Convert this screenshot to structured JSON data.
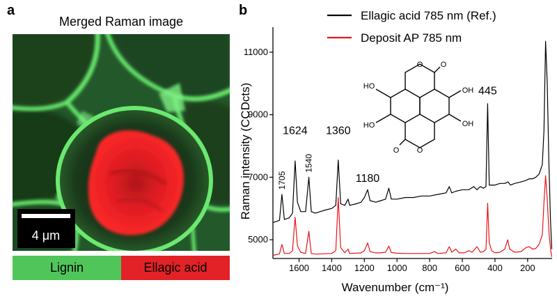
{
  "panel_a": {
    "letter": "a",
    "title": "Merged Raman image",
    "scale_bar_label": "4 μm",
    "legend": [
      {
        "label": "Lignin",
        "color": "#4fc55a"
      },
      {
        "label": "Ellagic acid",
        "color": "#e22226"
      }
    ]
  },
  "panel_b": {
    "letter": "b",
    "molecule_labels": [
      "HO",
      "HO",
      "OH",
      "OH",
      "O",
      "O",
      "O",
      "O"
    ]
  },
  "chart_data": {
    "type": "line",
    "xlabel": "Wavenumber (cm⁻¹)",
    "ylabel": "Raman intensity (CCDcts)",
    "xlim": [
      1760,
      50
    ],
    "ylim": [
      4400,
      11800
    ],
    "xticks": [
      1600,
      1400,
      1200,
      1000,
      800,
      600,
      400,
      200
    ],
    "yticks": [
      5000,
      7000,
      9000,
      11000
    ],
    "legend_position": "top-center",
    "series": [
      {
        "name": "Ellagic acid 785 nm (Ref.)",
        "color": "#000000",
        "points": [
          [
            1760,
            5550
          ],
          [
            1720,
            5620
          ],
          [
            1705,
            6450
          ],
          [
            1690,
            5650
          ],
          [
            1660,
            5700
          ],
          [
            1640,
            5850
          ],
          [
            1624,
            7520
          ],
          [
            1610,
            6200
          ],
          [
            1590,
            5900
          ],
          [
            1560,
            5900
          ],
          [
            1540,
            7000
          ],
          [
            1525,
            5900
          ],
          [
            1500,
            5850
          ],
          [
            1470,
            5900
          ],
          [
            1440,
            5950
          ],
          [
            1400,
            6000
          ],
          [
            1375,
            6100
          ],
          [
            1360,
            7550
          ],
          [
            1345,
            6150
          ],
          [
            1320,
            6100
          ],
          [
            1300,
            6300
          ],
          [
            1290,
            6100
          ],
          [
            1250,
            6150
          ],
          [
            1220,
            6200
          ],
          [
            1200,
            6350
          ],
          [
            1180,
            6600
          ],
          [
            1165,
            6250
          ],
          [
            1130,
            6200
          ],
          [
            1100,
            6250
          ],
          [
            1070,
            6300
          ],
          [
            1050,
            6650
          ],
          [
            1035,
            6300
          ],
          [
            1000,
            6300
          ],
          [
            950,
            6350
          ],
          [
            900,
            6350
          ],
          [
            850,
            6400
          ],
          [
            800,
            6400
          ],
          [
            750,
            6450
          ],
          [
            700,
            6500
          ],
          [
            680,
            6700
          ],
          [
            665,
            6500
          ],
          [
            640,
            6550
          ],
          [
            600,
            6600
          ],
          [
            560,
            6600
          ],
          [
            530,
            6700
          ],
          [
            510,
            6600
          ],
          [
            490,
            6700
          ],
          [
            470,
            6650
          ],
          [
            455,
            6700
          ],
          [
            445,
            9350
          ],
          [
            435,
            6750
          ],
          [
            400,
            6750
          ],
          [
            370,
            6800
          ],
          [
            340,
            6800
          ],
          [
            320,
            6850
          ],
          [
            305,
            6750
          ],
          [
            280,
            6800
          ],
          [
            240,
            6850
          ],
          [
            210,
            6900
          ],
          [
            190,
            6950
          ],
          [
            170,
            6950
          ],
          [
            150,
            7000
          ],
          [
            130,
            7100
          ],
          [
            110,
            7400
          ],
          [
            100,
            8500
          ],
          [
            90,
            11350
          ],
          [
            80,
            10000
          ],
          [
            70,
            7500
          ],
          [
            60,
            5600
          ],
          [
            52,
            4700
          ]
        ]
      },
      {
        "name": "Deposit AP 785 nm",
        "color": "#e8141b",
        "points": [
          [
            1760,
            4500
          ],
          [
            1720,
            4550
          ],
          [
            1705,
            4850
          ],
          [
            1690,
            4560
          ],
          [
            1660,
            4560
          ],
          [
            1640,
            4650
          ],
          [
            1624,
            5720
          ],
          [
            1610,
            4800
          ],
          [
            1590,
            4600
          ],
          [
            1560,
            4560
          ],
          [
            1540,
            5270
          ],
          [
            1525,
            4560
          ],
          [
            1500,
            4540
          ],
          [
            1450,
            4550
          ],
          [
            1400,
            4560
          ],
          [
            1375,
            4650
          ],
          [
            1360,
            6350
          ],
          [
            1345,
            4750
          ],
          [
            1320,
            4580
          ],
          [
            1300,
            4700
          ],
          [
            1290,
            4560
          ],
          [
            1250,
            4570
          ],
          [
            1220,
            4580
          ],
          [
            1200,
            4650
          ],
          [
            1180,
            4900
          ],
          [
            1165,
            4620
          ],
          [
            1130,
            4580
          ],
          [
            1100,
            4580
          ],
          [
            1070,
            4600
          ],
          [
            1050,
            4800
          ],
          [
            1035,
            4590
          ],
          [
            1000,
            4570
          ],
          [
            950,
            4560
          ],
          [
            900,
            4560
          ],
          [
            850,
            4560
          ],
          [
            800,
            4560
          ],
          [
            770,
            4620
          ],
          [
            750,
            4560
          ],
          [
            700,
            4580
          ],
          [
            680,
            4780
          ],
          [
            665,
            4600
          ],
          [
            640,
            4700
          ],
          [
            620,
            4580
          ],
          [
            590,
            4580
          ],
          [
            560,
            4650
          ],
          [
            540,
            4600
          ],
          [
            510,
            4780
          ],
          [
            490,
            4600
          ],
          [
            470,
            4620
          ],
          [
            455,
            4700
          ],
          [
            445,
            6170
          ],
          [
            435,
            4900
          ],
          [
            420,
            4650
          ],
          [
            400,
            4580
          ],
          [
            370,
            4600
          ],
          [
            340,
            4700
          ],
          [
            322,
            5000
          ],
          [
            310,
            4700
          ],
          [
            280,
            4600
          ],
          [
            240,
            4620
          ],
          [
            210,
            4750
          ],
          [
            190,
            4780
          ],
          [
            170,
            4700
          ],
          [
            150,
            4720
          ],
          [
            130,
            4850
          ],
          [
            110,
            5150
          ],
          [
            100,
            6200
          ],
          [
            90,
            7050
          ],
          [
            80,
            6300
          ],
          [
            70,
            5300
          ],
          [
            60,
            4700
          ],
          [
            52,
            4450
          ]
        ]
      }
    ],
    "annotations": [
      {
        "text": "1705",
        "x": 1705,
        "y": 6600,
        "rotate": -90,
        "size": 12
      },
      {
        "text": "1624",
        "x": 1624,
        "y": 8380,
        "size": 16
      },
      {
        "text": "1540",
        "x": 1540,
        "y": 7150,
        "rotate": -90,
        "size": 12
      },
      {
        "text": "1360",
        "x": 1360,
        "y": 8380,
        "size": 16
      },
      {
        "text": "1180",
        "x": 1180,
        "y": 6850,
        "size": 16
      },
      {
        "text": "445",
        "x": 445,
        "y": 9650,
        "size": 16
      }
    ]
  }
}
